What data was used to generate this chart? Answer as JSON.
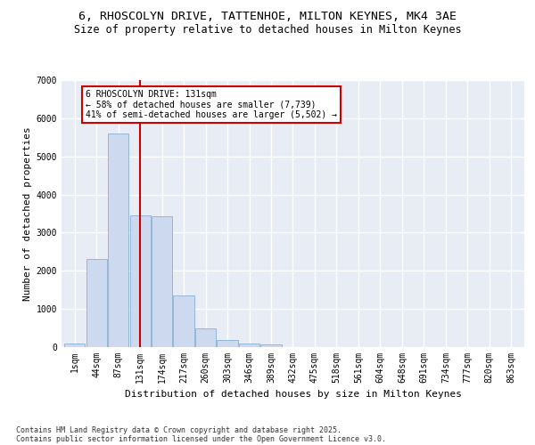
{
  "title_line1": "6, RHOSCOLYN DRIVE, TATTENHOE, MILTON KEYNES, MK4 3AE",
  "title_line2": "Size of property relative to detached houses in Milton Keynes",
  "xlabel": "Distribution of detached houses by size in Milton Keynes",
  "ylabel": "Number of detached properties",
  "categories": [
    "1sqm",
    "44sqm",
    "87sqm",
    "131sqm",
    "174sqm",
    "217sqm",
    "260sqm",
    "303sqm",
    "346sqm",
    "389sqm",
    "432sqm",
    "475sqm",
    "518sqm",
    "561sqm",
    "604sqm",
    "648sqm",
    "691sqm",
    "734sqm",
    "777sqm",
    "820sqm",
    "863sqm"
  ],
  "bar_values": [
    100,
    2300,
    5600,
    3450,
    3420,
    1350,
    480,
    195,
    90,
    65,
    0,
    0,
    0,
    0,
    0,
    0,
    0,
    0,
    0,
    0,
    0
  ],
  "bar_color": "#ccd9ef",
  "bar_edge_color": "#8aafd4",
  "background_color": "#e8edf5",
  "grid_color": "#ffffff",
  "vline_x_index": 3,
  "vline_color": "#cc0000",
  "annotation_text": "6 RHOSCOLYN DRIVE: 131sqm\n← 58% of detached houses are smaller (7,739)\n41% of semi-detached houses are larger (5,502) →",
  "annotation_box_edgecolor": "#cc0000",
  "ylim": [
    0,
    7000
  ],
  "yticks": [
    0,
    1000,
    2000,
    3000,
    4000,
    5000,
    6000,
    7000
  ],
  "footer_line1": "Contains HM Land Registry data © Crown copyright and database right 2025.",
  "footer_line2": "Contains public sector information licensed under the Open Government Licence v3.0.",
  "fig_facecolor": "#ffffff",
  "title_fontsize": 9.5,
  "subtitle_fontsize": 8.5,
  "axis_label_fontsize": 8,
  "tick_fontsize": 7,
  "annotation_fontsize": 7,
  "footer_fontsize": 6
}
